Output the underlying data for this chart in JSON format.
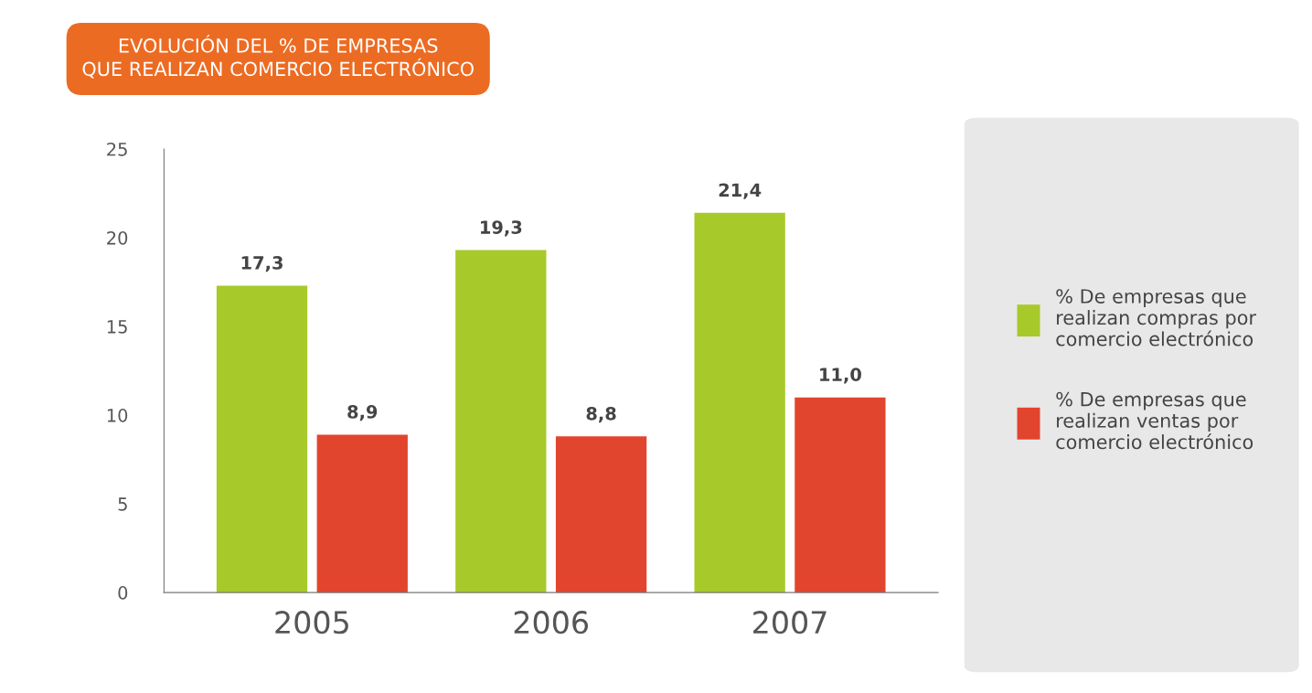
{
  "chart_data": {
    "type": "bar",
    "title": "EVOLUCIÓN DEL % DE EMPRESAS\nQUE REALIZAN COMERCIO ELECTRÓNICO",
    "categories": [
      "2005",
      "2006",
      "2007"
    ],
    "series": [
      {
        "name": "% De empresas que\nrealizan compras por\ncomercio electrónico",
        "color": "#a8c92a",
        "values": [
          17.3,
          19.3,
          21.4
        ],
        "value_labels": [
          "17,3",
          "19,3",
          "21,4"
        ]
      },
      {
        "name": "% De empresas que\nrealizan ventas por\ncomercio electrónico",
        "color": "#e2452e",
        "values": [
          8.9,
          8.8,
          11.0
        ],
        "value_labels": [
          "8,9",
          "8,8",
          "11,0"
        ]
      }
    ],
    "ylim": [
      0,
      25
    ],
    "yticks": [
      0,
      5,
      10,
      15,
      20,
      25
    ],
    "grid": false,
    "legend": "right"
  }
}
